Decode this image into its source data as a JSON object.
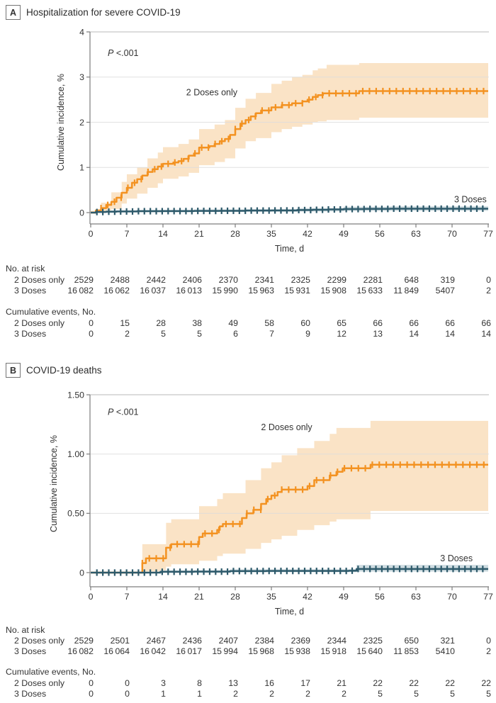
{
  "chart_data": [
    {
      "type": "line",
      "panel_label": "A",
      "title": "Hospitalization for severe COVID-19",
      "annotation": {
        "italic": "P",
        "rest": " <.001",
        "x_day": 3.3,
        "y_val": 3.47
      },
      "xlabel": "Time, d",
      "ylabel": "Cumulative incidence, %",
      "xlim": [
        0,
        77
      ],
      "xticks": [
        0,
        7,
        14,
        21,
        28,
        35,
        42,
        49,
        56,
        63,
        70,
        77
      ],
      "ylim": [
        0,
        4
      ],
      "yticks": [
        0,
        1,
        2,
        3,
        4
      ],
      "ytick_labels": [
        "0",
        "1",
        "2",
        "3",
        "4"
      ],
      "grid": true,
      "series": [
        {
          "name": "2 Doses only",
          "color": "#F39221",
          "band_color": "#FAE3C6",
          "label": {
            "text": "2 Doses only",
            "x_day": 18.5,
            "y_val": 2.6,
            "anchor": "start"
          },
          "censor": {
            "start": 2,
            "end": 76.6,
            "step": 1.3
          },
          "steps": [
            [
              0,
              0
            ],
            [
              1,
              0.05
            ],
            [
              2,
              0.1
            ],
            [
              3,
              0.17
            ],
            [
              4,
              0.24
            ],
            [
              5,
              0.33
            ],
            [
              6,
              0.44
            ],
            [
              7,
              0.55
            ],
            [
              8,
              0.66
            ],
            [
              9,
              0.74
            ],
            [
              10,
              0.82
            ],
            [
              11,
              0.9
            ],
            [
              12,
              0.96
            ],
            [
              13,
              1.02
            ],
            [
              14,
              1.08
            ],
            [
              16,
              1.11
            ],
            [
              17,
              1.14
            ],
            [
              18,
              1.19
            ],
            [
              19,
              1.26
            ],
            [
              20,
              1.31
            ],
            [
              21,
              1.44
            ],
            [
              23,
              1.47
            ],
            [
              24,
              1.52
            ],
            [
              25,
              1.58
            ],
            [
              26,
              1.63
            ],
            [
              27,
              1.72
            ],
            [
              28,
              1.85
            ],
            [
              29,
              1.97
            ],
            [
              30,
              2.05
            ],
            [
              31,
              2.13
            ],
            [
              32,
              2.2
            ],
            [
              33,
              2.26
            ],
            [
              35,
              2.33
            ],
            [
              37,
              2.38
            ],
            [
              39,
              2.42
            ],
            [
              41,
              2.46
            ],
            [
              42,
              2.5
            ],
            [
              43,
              2.56
            ],
            [
              44,
              2.6
            ],
            [
              45,
              2.64
            ],
            [
              52,
              2.69
            ],
            [
              77,
              2.69
            ]
          ],
          "band": [
            [
              0,
              0,
              0.04
            ],
            [
              2,
              0.02,
              0.22
            ],
            [
              4,
              0.08,
              0.45
            ],
            [
              6,
              0.2,
              0.68
            ],
            [
              7,
              0.31,
              0.85
            ],
            [
              9,
              0.42,
              1.0
            ],
            [
              11,
              0.55,
              1.2
            ],
            [
              13,
              0.65,
              1.33
            ],
            [
              14,
              0.75,
              1.45
            ],
            [
              17,
              0.8,
              1.52
            ],
            [
              19,
              0.88,
              1.62
            ],
            [
              21,
              1.05,
              1.85
            ],
            [
              24,
              1.12,
              1.95
            ],
            [
              26,
              1.2,
              2.05
            ],
            [
              28,
              1.42,
              2.32
            ],
            [
              30,
              1.58,
              2.52
            ],
            [
              32,
              1.65,
              2.65
            ],
            [
              35,
              1.78,
              2.85
            ],
            [
              37,
              1.85,
              2.92
            ],
            [
              39,
              1.9,
              3.0
            ],
            [
              41,
              1.95,
              3.05
            ],
            [
              43,
              2.0,
              3.15
            ],
            [
              44,
              2.02,
              3.19
            ],
            [
              45.7,
              2.05,
              3.27
            ],
            [
              52,
              2.1,
              3.31
            ],
            [
              77,
              2.1,
              3.31
            ]
          ]
        },
        {
          "name": "3 Doses",
          "color": "#2E5A6B",
          "band_color": "#CFDCE1",
          "label": {
            "text": "3 Doses",
            "x_day": 76.7,
            "y_val": 0.23,
            "anchor": "end"
          },
          "censor": {
            "start": 1.2,
            "end": 76.5,
            "step": 1.15
          },
          "steps": [
            [
              0,
              0
            ],
            [
              1,
              0.013
            ],
            [
              3,
              0.02
            ],
            [
              5,
              0.025
            ],
            [
              9,
              0.031
            ],
            [
              14,
              0.033
            ],
            [
              20,
              0.037
            ],
            [
              25,
              0.04
            ],
            [
              30,
              0.045
            ],
            [
              35,
              0.048
            ],
            [
              40,
              0.056
            ],
            [
              43,
              0.062
            ],
            [
              46,
              0.07
            ],
            [
              49,
              0.078
            ],
            [
              53,
              0.082
            ],
            [
              58,
              0.087
            ],
            [
              77,
              0.087
            ]
          ],
          "band": [
            [
              0,
              0,
              0.01
            ],
            [
              3,
              0.005,
              0.05
            ],
            [
              9,
              0.01,
              0.06
            ],
            [
              20,
              0.015,
              0.07
            ],
            [
              30,
              0.02,
              0.08
            ],
            [
              40,
              0.025,
              0.1
            ],
            [
              49,
              0.035,
              0.13
            ],
            [
              58,
              0.04,
              0.14
            ],
            [
              77,
              0.04,
              0.14
            ]
          ]
        }
      ],
      "risk_table": {
        "title": "No. at risk",
        "rows": [
          {
            "label": "2 Doses only",
            "values": [
              "2529",
              "2488",
              "2442",
              "2406",
              "2370",
              "2341",
              "2325",
              "2299",
              "2281",
              "648",
              "319",
              "0"
            ]
          },
          {
            "label": "3 Doses",
            "values": [
              "16 082",
              "16 062",
              "16 037",
              "16 013",
              "15 990",
              "15 963",
              "15 931",
              "15 908",
              "15 633",
              "11 849",
              "5407",
              "2"
            ]
          }
        ]
      },
      "events_table": {
        "title": "Cumulative events, No.",
        "rows": [
          {
            "label": "2 Doses only",
            "values": [
              "0",
              "15",
              "28",
              "38",
              "49",
              "58",
              "60",
              "65",
              "66",
              "66",
              "66",
              "66"
            ]
          },
          {
            "label": "3 Doses",
            "values": [
              "0",
              "2",
              "5",
              "5",
              "6",
              "7",
              "9",
              "12",
              "13",
              "14",
              "14",
              "14"
            ]
          }
        ]
      }
    },
    {
      "type": "line",
      "panel_label": "B",
      "title": "COVID-19 deaths",
      "annotation": {
        "italic": "P",
        "rest": " <.001",
        "x_day": 3.3,
        "y_val": 1.33
      },
      "xlabel": "Time, d",
      "ylabel": "Cumulative incidence, %",
      "xlim": [
        0,
        77
      ],
      "xticks": [
        0,
        7,
        14,
        21,
        28,
        35,
        42,
        49,
        56,
        63,
        70,
        77
      ],
      "ylim": [
        0,
        1.5
      ],
      "yticks": [
        0,
        0.5,
        1.0,
        1.5
      ],
      "ytick_labels": [
        "0",
        "0.50",
        "1.00",
        "1.50"
      ],
      "grid": true,
      "series": [
        {
          "name": "2 Doses only",
          "color": "#F39221",
          "band_color": "#FAE3C6",
          "label": {
            "text": "2 Doses only",
            "x_day": 33,
            "y_val": 1.2,
            "anchor": "start"
          },
          "censor": {
            "start": 10,
            "end": 76.6,
            "step": 1.35
          },
          "steps": [
            [
              0,
              0
            ],
            [
              10,
              0.08
            ],
            [
              10.7,
              0.12
            ],
            [
              14.6,
              0.21
            ],
            [
              15.6,
              0.24
            ],
            [
              21,
              0.3
            ],
            [
              21.7,
              0.33
            ],
            [
              24.5,
              0.36
            ],
            [
              25,
              0.39
            ],
            [
              25.6,
              0.41
            ],
            [
              29.3,
              0.46
            ],
            [
              30.2,
              0.5
            ],
            [
              31.5,
              0.53
            ],
            [
              33,
              0.58
            ],
            [
              34,
              0.62
            ],
            [
              35,
              0.65
            ],
            [
              36.2,
              0.68
            ],
            [
              37,
              0.7
            ],
            [
              42,
              0.73
            ],
            [
              43.3,
              0.78
            ],
            [
              46.3,
              0.82
            ],
            [
              47.6,
              0.85
            ],
            [
              48.8,
              0.88
            ],
            [
              54.2,
              0.91
            ],
            [
              77,
              0.91
            ]
          ],
          "band": [
            [
              0,
              0,
              0
            ],
            [
              10,
              0.01,
              0.24
            ],
            [
              14.6,
              0.05,
              0.42
            ],
            [
              15.6,
              0.07,
              0.45
            ],
            [
              21,
              0.1,
              0.56
            ],
            [
              24.5,
              0.14,
              0.62
            ],
            [
              25.6,
              0.16,
              0.67
            ],
            [
              30,
              0.2,
              0.78
            ],
            [
              33,
              0.25,
              0.88
            ],
            [
              35,
              0.28,
              0.93
            ],
            [
              37,
              0.31,
              0.99
            ],
            [
              40,
              0.36,
              1.05
            ],
            [
              43.3,
              0.4,
              1.11
            ],
            [
              46.3,
              0.43,
              1.17
            ],
            [
              47.6,
              0.45,
              1.22
            ],
            [
              54.2,
              0.52,
              1.28
            ],
            [
              77,
              0.52,
              1.28
            ]
          ]
        },
        {
          "name": "3 Doses",
          "color": "#2E5A6B",
          "band_color": "#CFDCE1",
          "label": {
            "text": "3 Doses",
            "x_day": 74,
            "y_val": 0.095,
            "anchor": "end"
          },
          "censor": {
            "start": 1.2,
            "end": 76.5,
            "step": 1.15
          },
          "steps": [
            [
              0,
              0
            ],
            [
              13.5,
              0.007
            ],
            [
              20,
              0.008
            ],
            [
              27,
              0.013
            ],
            [
              34,
              0.014
            ],
            [
              50,
              0.016
            ],
            [
              51.5,
              0.031
            ],
            [
              77,
              0.031
            ]
          ],
          "band": [
            [
              0,
              0,
              0.005
            ],
            [
              13.5,
              0.001,
              0.02
            ],
            [
              27,
              0.003,
              0.028
            ],
            [
              50,
              0.004,
              0.03
            ],
            [
              51.5,
              0.008,
              0.065
            ],
            [
              77,
              0.008,
              0.065
            ]
          ]
        }
      ],
      "risk_table": {
        "title": "No. at risk",
        "rows": [
          {
            "label": "2 Doses only",
            "values": [
              "2529",
              "2501",
              "2467",
              "2436",
              "2407",
              "2384",
              "2369",
              "2344",
              "2325",
              "650",
              "321",
              "0"
            ]
          },
          {
            "label": "3 Doses",
            "values": [
              "16 082",
              "16 064",
              "16 042",
              "16 017",
              "15 994",
              "15 968",
              "15 938",
              "15 918",
              "15 640",
              "11 853",
              "5410",
              "2"
            ]
          }
        ]
      },
      "events_table": {
        "title": "Cumulative events, No.",
        "rows": [
          {
            "label": "2 Doses only",
            "values": [
              "0",
              "0",
              "3",
              "8",
              "13",
              "16",
              "17",
              "21",
              "22",
              "22",
              "22",
              "22"
            ]
          },
          {
            "label": "3 Doses",
            "values": [
              "0",
              "0",
              "1",
              "1",
              "2",
              "2",
              "2",
              "2",
              "5",
              "5",
              "5",
              "5"
            ]
          }
        ]
      }
    }
  ]
}
